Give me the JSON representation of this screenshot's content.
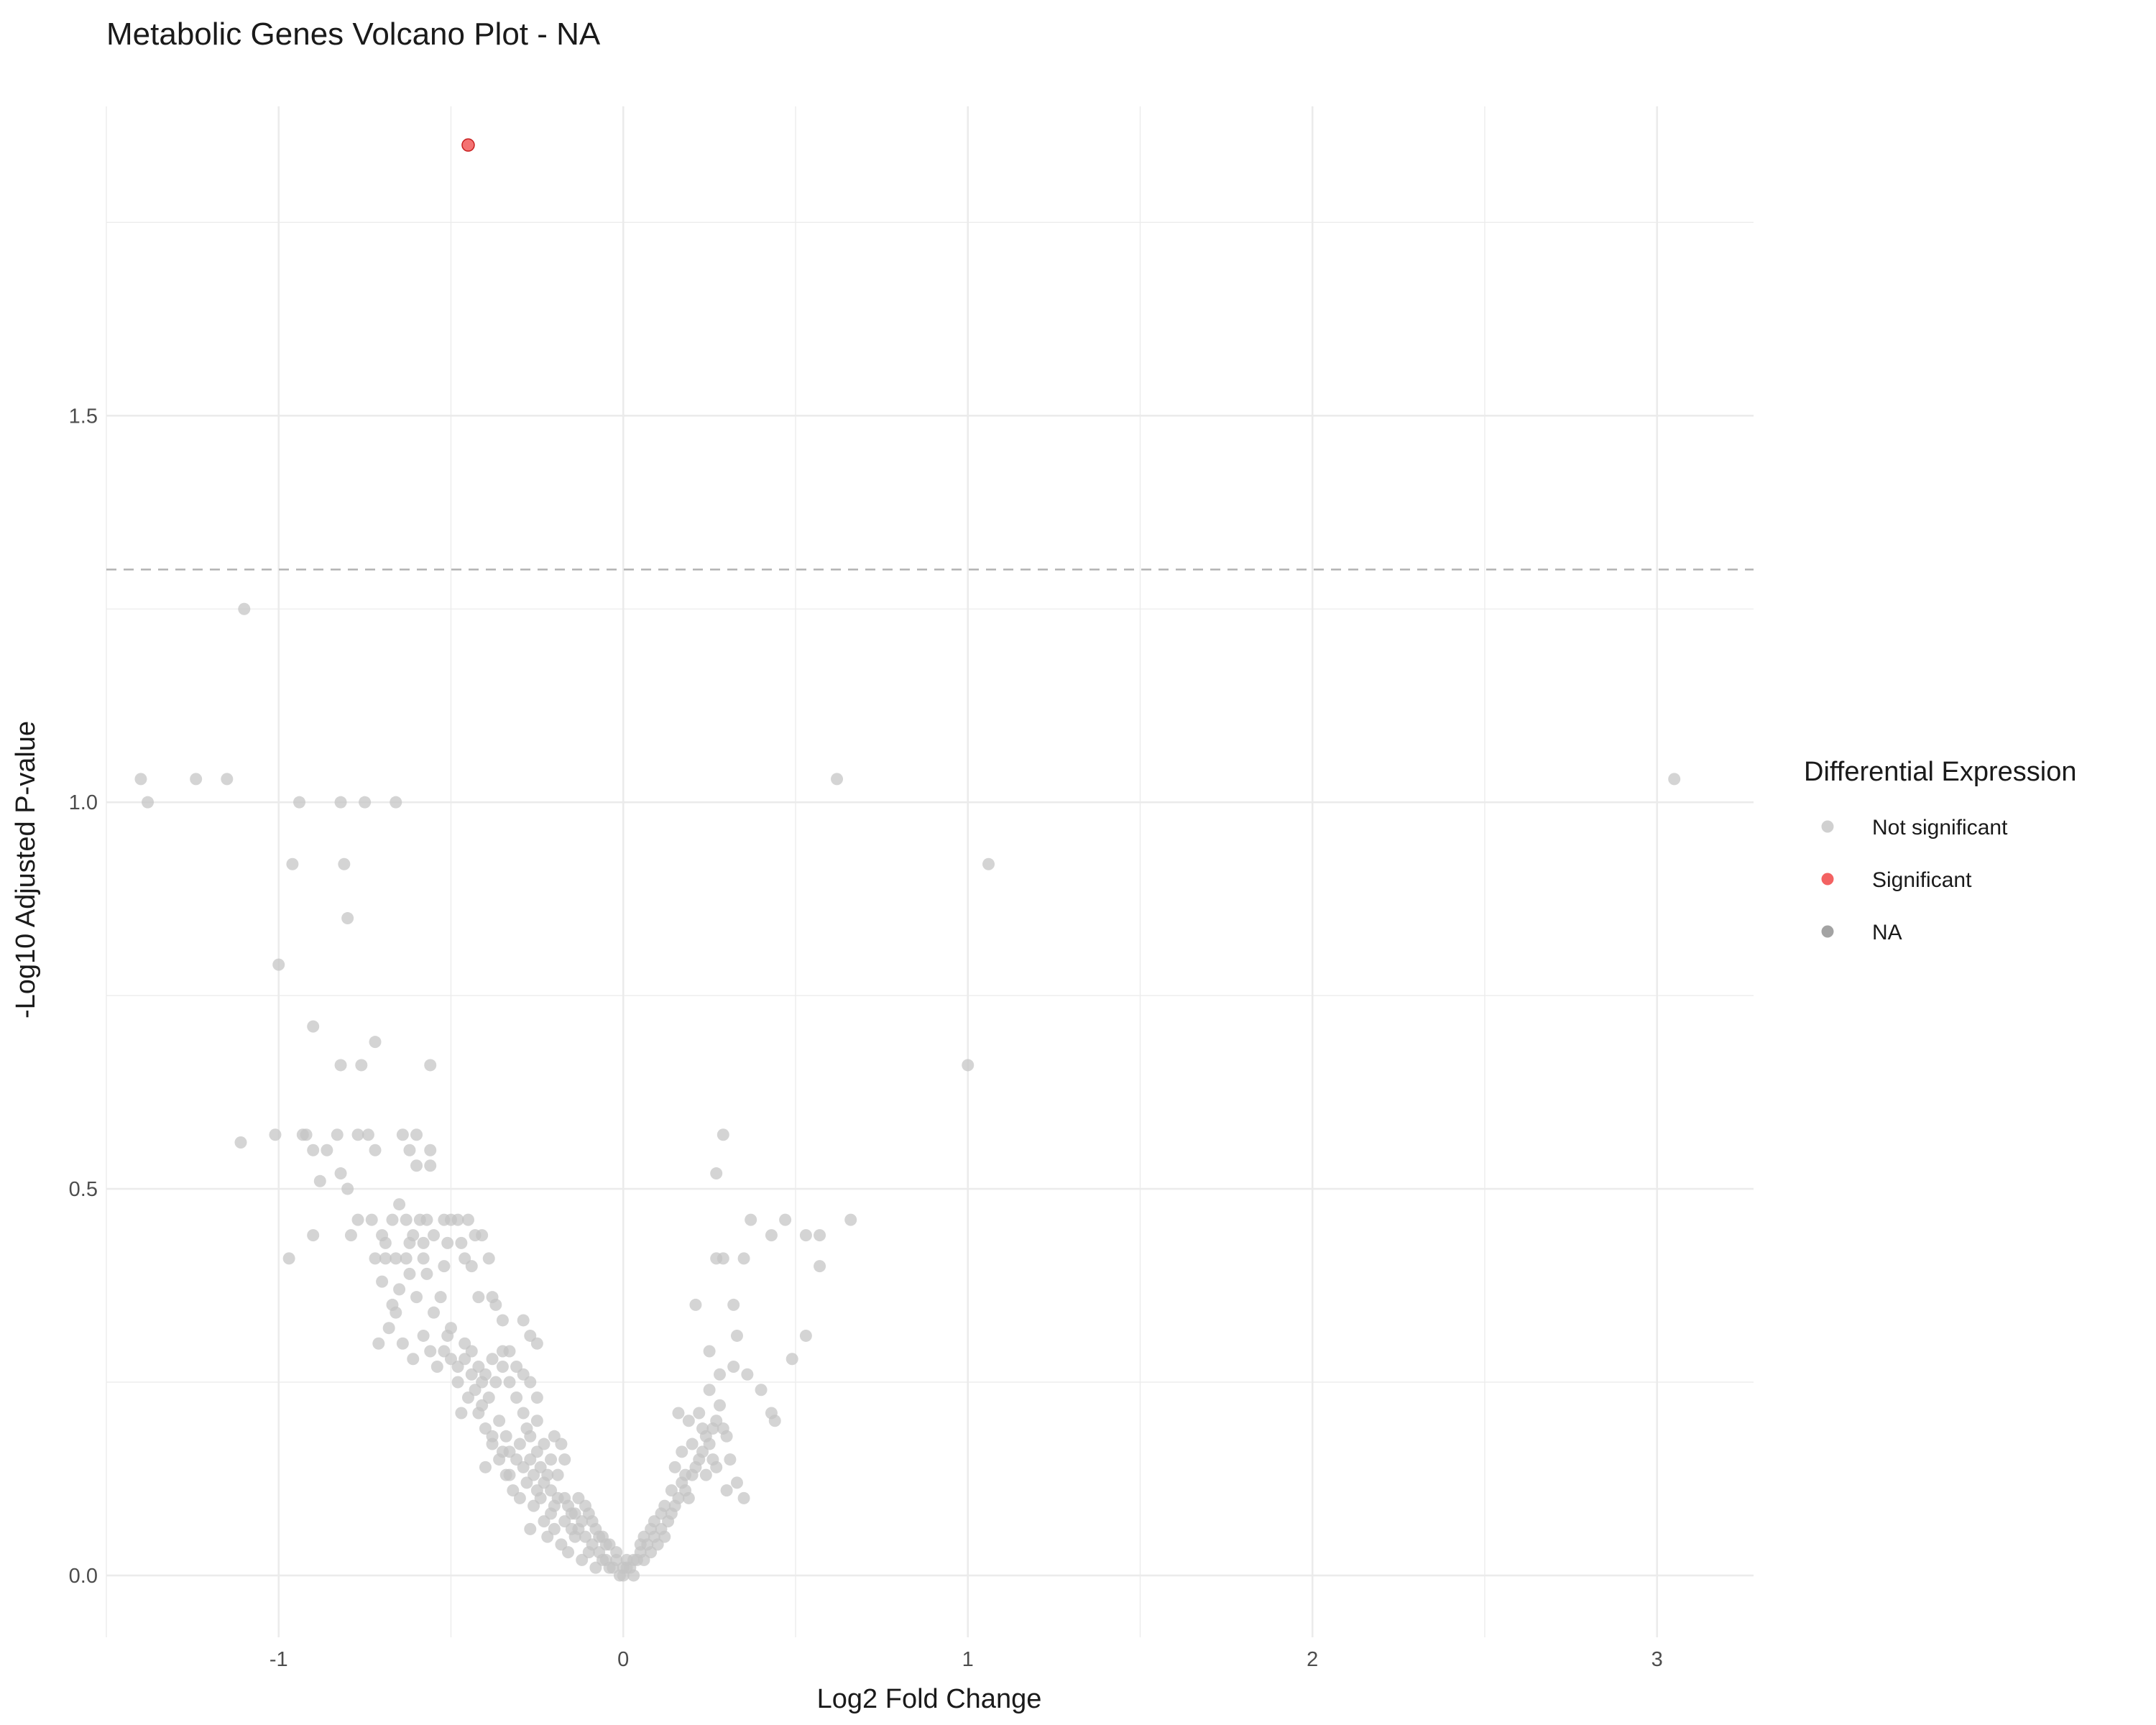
{
  "chart_data": {
    "type": "scatter",
    "title": "Metabolic Genes Volcano Plot - NA",
    "xlabel": "Log2 Fold Change",
    "ylabel": "-Log10 Adjusted P-value",
    "xlim": [
      -1.5,
      3.28
    ],
    "ylim": [
      -0.08,
      1.9
    ],
    "x_ticks": [
      "-1",
      "0",
      "1",
      "2",
      "3"
    ],
    "y_ticks": [
      "0.0",
      "0.5",
      "1.0",
      "1.5"
    ],
    "x_tick_values": [
      -1,
      0,
      1,
      2,
      3
    ],
    "y_tick_values": [
      0,
      0.5,
      1.0,
      1.5
    ],
    "grid": true,
    "threshold_y": 1.301,
    "legend": {
      "title": "Differential Expression",
      "position": "right",
      "entries": [
        {
          "label": "Not significant",
          "color": "#c4c4c4"
        },
        {
          "label": "Significant",
          "color": "#f03b3b"
        },
        {
          "label": "NA",
          "color": "#8c8c8c"
        }
      ]
    },
    "series": [
      {
        "name": "Significant",
        "color": "#f03b3b",
        "points": [
          [
            -0.45,
            1.85
          ]
        ]
      },
      {
        "name": "Not significant",
        "color": "#c4c4c4",
        "points": [
          [
            -1.1,
            1.25
          ],
          [
            -1.4,
            1.03
          ],
          [
            -1.38,
            1.0
          ],
          [
            -1.24,
            1.03
          ],
          [
            -1.15,
            1.03
          ],
          [
            -0.94,
            1.0
          ],
          [
            -0.82,
            1.0
          ],
          [
            -0.75,
            1.0
          ],
          [
            -0.66,
            1.0
          ],
          [
            -0.96,
            0.92
          ],
          [
            -0.81,
            0.92
          ],
          [
            -0.8,
            0.85
          ],
          [
            -1.0,
            0.79
          ],
          [
            -0.9,
            0.71
          ],
          [
            -0.72,
            0.69
          ],
          [
            -0.82,
            0.66
          ],
          [
            -0.76,
            0.66
          ],
          [
            -0.56,
            0.66
          ],
          [
            -1.11,
            0.56
          ],
          [
            -1.01,
            0.57
          ],
          [
            -0.93,
            0.57
          ],
          [
            -0.92,
            0.57
          ],
          [
            -0.9,
            0.55
          ],
          [
            -0.88,
            0.51
          ],
          [
            -0.86,
            0.55
          ],
          [
            -0.83,
            0.57
          ],
          [
            -0.82,
            0.52
          ],
          [
            -0.8,
            0.5
          ],
          [
            -0.77,
            0.57
          ],
          [
            -0.74,
            0.57
          ],
          [
            -0.72,
            0.55
          ],
          [
            -0.64,
            0.57
          ],
          [
            -0.62,
            0.55
          ],
          [
            -0.6,
            0.57
          ],
          [
            -0.6,
            0.53
          ],
          [
            -0.56,
            0.55
          ],
          [
            -0.56,
            0.53
          ],
          [
            -0.97,
            0.41
          ],
          [
            -0.9,
            0.44
          ],
          [
            -0.79,
            0.44
          ],
          [
            -0.77,
            0.46
          ],
          [
            -0.73,
            0.46
          ],
          [
            -0.7,
            0.44
          ],
          [
            -0.67,
            0.46
          ],
          [
            -0.65,
            0.48
          ],
          [
            -0.63,
            0.46
          ],
          [
            -0.61,
            0.44
          ],
          [
            -0.59,
            0.46
          ],
          [
            -0.57,
            0.46
          ],
          [
            -0.55,
            0.44
          ],
          [
            -0.52,
            0.46
          ],
          [
            -0.5,
            0.46
          ],
          [
            -0.48,
            0.46
          ],
          [
            -0.45,
            0.46
          ],
          [
            -0.43,
            0.44
          ],
          [
            -0.41,
            0.44
          ],
          [
            -0.39,
            0.41
          ],
          [
            -0.72,
            0.41
          ],
          [
            -0.69,
            0.41
          ],
          [
            -0.66,
            0.41
          ],
          [
            -0.63,
            0.41
          ],
          [
            -0.58,
            0.41
          ],
          [
            -0.52,
            0.4
          ],
          [
            -0.46,
            0.41
          ],
          [
            -0.44,
            0.4
          ],
          [
            -0.42,
            0.36
          ],
          [
            -0.38,
            0.36
          ],
          [
            -0.37,
            0.35
          ],
          [
            -0.35,
            0.33
          ],
          [
            -0.29,
            0.33
          ],
          [
            -0.27,
            0.31
          ],
          [
            -0.25,
            0.3
          ],
          [
            -0.71,
            0.3
          ],
          [
            -0.68,
            0.32
          ],
          [
            -0.66,
            0.34
          ],
          [
            -0.64,
            0.3
          ],
          [
            -0.61,
            0.28
          ],
          [
            -0.58,
            0.31
          ],
          [
            -0.56,
            0.29
          ],
          [
            -0.54,
            0.27
          ],
          [
            -0.52,
            0.29
          ],
          [
            -0.5,
            0.28
          ],
          [
            -0.48,
            0.27
          ],
          [
            -0.46,
            0.3
          ],
          [
            -0.44,
            0.29
          ],
          [
            -0.42,
            0.27
          ],
          [
            -0.4,
            0.26
          ],
          [
            -0.38,
            0.28
          ],
          [
            -0.35,
            0.29
          ],
          [
            -0.33,
            0.29
          ],
          [
            -0.31,
            0.27
          ],
          [
            -0.29,
            0.26
          ],
          [
            -0.27,
            0.25
          ],
          [
            -0.25,
            0.23
          ],
          [
            -0.55,
            0.34
          ],
          [
            -0.6,
            0.36
          ],
          [
            -0.5,
            0.32
          ],
          [
            -0.45,
            0.23
          ],
          [
            -0.47,
            0.21
          ],
          [
            -0.42,
            0.21
          ],
          [
            -0.4,
            0.19
          ],
          [
            -0.38,
            0.18
          ],
          [
            -0.36,
            0.2
          ],
          [
            -0.34,
            0.18
          ],
          [
            -0.33,
            0.16
          ],
          [
            -0.31,
            0.15
          ],
          [
            -0.3,
            0.17
          ],
          [
            -0.29,
            0.14
          ],
          [
            -0.28,
            0.19
          ],
          [
            -0.27,
            0.15
          ],
          [
            -0.26,
            0.13
          ],
          [
            -0.25,
            0.16
          ],
          [
            -0.24,
            0.14
          ],
          [
            -0.22,
            0.13
          ],
          [
            -0.21,
            0.11
          ],
          [
            -0.2,
            0.18
          ],
          [
            -0.18,
            0.17
          ],
          [
            -0.17,
            0.15
          ],
          [
            -0.48,
            0.25
          ],
          [
            -0.43,
            0.24
          ],
          [
            -0.35,
            0.16
          ],
          [
            -0.33,
            0.13
          ],
          [
            -0.3,
            0.1
          ],
          [
            -0.28,
            0.12
          ],
          [
            -0.26,
            0.09
          ],
          [
            -0.24,
            0.1
          ],
          [
            -0.23,
            0.12
          ],
          [
            -0.21,
            0.08
          ],
          [
            -0.19,
            0.1
          ],
          [
            -0.17,
            0.07
          ],
          [
            -0.16,
            0.09
          ],
          [
            -0.15,
            0.06
          ],
          [
            -0.14,
            0.08
          ],
          [
            -0.13,
            0.1
          ],
          [
            -0.12,
            0.07
          ],
          [
            -0.11,
            0.05
          ],
          [
            -0.1,
            0.08
          ],
          [
            -0.09,
            0.04
          ],
          [
            -0.08,
            0.06
          ],
          [
            -0.07,
            0.03
          ],
          [
            -0.06,
            0.05
          ],
          [
            -0.05,
            0.02
          ],
          [
            -0.04,
            0.04
          ],
          [
            -0.03,
            0.01
          ],
          [
            -0.02,
            0.03
          ],
          [
            -0.01,
            0.0
          ],
          [
            0.0,
            0.01
          ],
          [
            0.0,
            0.0
          ],
          [
            0.01,
            0.02
          ],
          [
            0.02,
            0.01
          ],
          [
            0.03,
            0.0
          ],
          [
            0.04,
            0.02
          ],
          [
            0.05,
            0.03
          ],
          [
            0.06,
            0.02
          ],
          [
            0.07,
            0.04
          ],
          [
            0.08,
            0.03
          ],
          [
            0.09,
            0.05
          ],
          [
            0.1,
            0.04
          ],
          [
            0.11,
            0.06
          ],
          [
            0.12,
            0.05
          ],
          [
            0.13,
            0.07
          ],
          [
            0.14,
            0.08
          ],
          [
            0.15,
            0.09
          ],
          [
            0.16,
            0.1
          ],
          [
            0.17,
            0.12
          ],
          [
            0.18,
            0.11
          ],
          [
            0.19,
            0.1
          ],
          [
            0.2,
            0.13
          ],
          [
            0.21,
            0.14
          ],
          [
            0.22,
            0.15
          ],
          [
            0.23,
            0.16
          ],
          [
            0.24,
            0.18
          ],
          [
            0.25,
            0.17
          ],
          [
            0.26,
            0.19
          ],
          [
            0.27,
            0.2
          ],
          [
            0.28,
            0.22
          ],
          [
            0.29,
            0.19
          ],
          [
            0.3,
            0.18
          ],
          [
            0.31,
            0.15
          ],
          [
            0.33,
            0.12
          ],
          [
            0.35,
            0.1
          ],
          [
            0.3,
            0.11
          ],
          [
            0.27,
            0.14
          ],
          [
            0.24,
            0.13
          ],
          [
            0.15,
            0.14
          ],
          [
            0.17,
            0.16
          ],
          [
            0.19,
            0.2
          ],
          [
            0.22,
            0.21
          ],
          [
            0.25,
            0.24
          ],
          [
            0.28,
            0.26
          ],
          [
            0.32,
            0.27
          ],
          [
            0.33,
            0.31
          ],
          [
            0.36,
            0.26
          ],
          [
            0.4,
            0.24
          ],
          [
            0.43,
            0.21
          ],
          [
            0.44,
            0.2
          ],
          [
            0.16,
            0.21
          ],
          [
            0.21,
            0.35
          ],
          [
            0.25,
            0.29
          ],
          [
            0.27,
            0.41
          ],
          [
            0.29,
            0.41
          ],
          [
            0.32,
            0.35
          ],
          [
            0.35,
            0.41
          ],
          [
            0.37,
            0.46
          ],
          [
            0.43,
            0.44
          ],
          [
            0.47,
            0.46
          ],
          [
            0.53,
            0.44
          ],
          [
            0.57,
            0.44
          ],
          [
            0.57,
            0.4
          ],
          [
            0.49,
            0.28
          ],
          [
            0.53,
            0.31
          ],
          [
            0.27,
            0.52
          ],
          [
            0.29,
            0.57
          ],
          [
            0.62,
            1.03
          ],
          [
            0.66,
            0.46
          ],
          [
            1.06,
            0.92
          ],
          [
            1.0,
            0.66
          ],
          [
            3.05,
            1.03
          ],
          [
            -0.22,
            0.05
          ],
          [
            -0.2,
            0.06
          ],
          [
            -0.18,
            0.04
          ],
          [
            -0.16,
            0.03
          ],
          [
            -0.14,
            0.05
          ],
          [
            -0.12,
            0.02
          ],
          [
            -0.1,
            0.03
          ],
          [
            -0.08,
            0.01
          ],
          [
            -0.06,
            0.02
          ],
          [
            -0.2,
            0.09
          ],
          [
            -0.23,
            0.07
          ],
          [
            -0.25,
            0.11
          ],
          [
            -0.27,
            0.06
          ],
          [
            -0.32,
            0.11
          ],
          [
            -0.34,
            0.13
          ],
          [
            -0.36,
            0.15
          ],
          [
            -0.38,
            0.17
          ],
          [
            -0.4,
            0.14
          ],
          [
            -0.41,
            0.22
          ],
          [
            -0.44,
            0.26
          ],
          [
            -0.46,
            0.28
          ],
          [
            -0.51,
            0.31
          ],
          [
            -0.53,
            0.36
          ],
          [
            -0.57,
            0.39
          ],
          [
            -0.62,
            0.39
          ],
          [
            -0.65,
            0.37
          ],
          [
            -0.67,
            0.35
          ],
          [
            -0.69,
            0.43
          ],
          [
            -0.7,
            0.38
          ],
          [
            -0.62,
            0.43
          ],
          [
            -0.58,
            0.43
          ],
          [
            -0.51,
            0.43
          ],
          [
            -0.47,
            0.43
          ],
          [
            -0.41,
            0.25
          ],
          [
            -0.39,
            0.23
          ],
          [
            -0.37,
            0.25
          ],
          [
            -0.35,
            0.27
          ],
          [
            -0.33,
            0.25
          ],
          [
            -0.31,
            0.23
          ],
          [
            -0.29,
            0.21
          ],
          [
            -0.27,
            0.18
          ],
          [
            -0.25,
            0.2
          ],
          [
            -0.23,
            0.17
          ],
          [
            -0.21,
            0.15
          ],
          [
            -0.19,
            0.13
          ],
          [
            0.06,
            0.05
          ],
          [
            0.09,
            0.07
          ],
          [
            0.12,
            0.09
          ],
          [
            0.14,
            0.11
          ],
          [
            0.18,
            0.13
          ],
          [
            0.2,
            0.17
          ],
          [
            0.23,
            0.19
          ],
          [
            0.26,
            0.15
          ],
          [
            0.11,
            0.08
          ],
          [
            0.08,
            0.06
          ],
          [
            0.05,
            0.04
          ],
          [
            0.03,
            0.02
          ],
          [
            0.01,
            0.01
          ],
          [
            -0.02,
            0.02
          ],
          [
            -0.04,
            0.01
          ],
          [
            -0.05,
            0.04
          ],
          [
            -0.07,
            0.05
          ],
          [
            -0.09,
            0.07
          ],
          [
            -0.11,
            0.09
          ],
          [
            -0.13,
            0.06
          ],
          [
            -0.15,
            0.08
          ],
          [
            -0.17,
            0.1
          ]
        ]
      }
    ]
  }
}
